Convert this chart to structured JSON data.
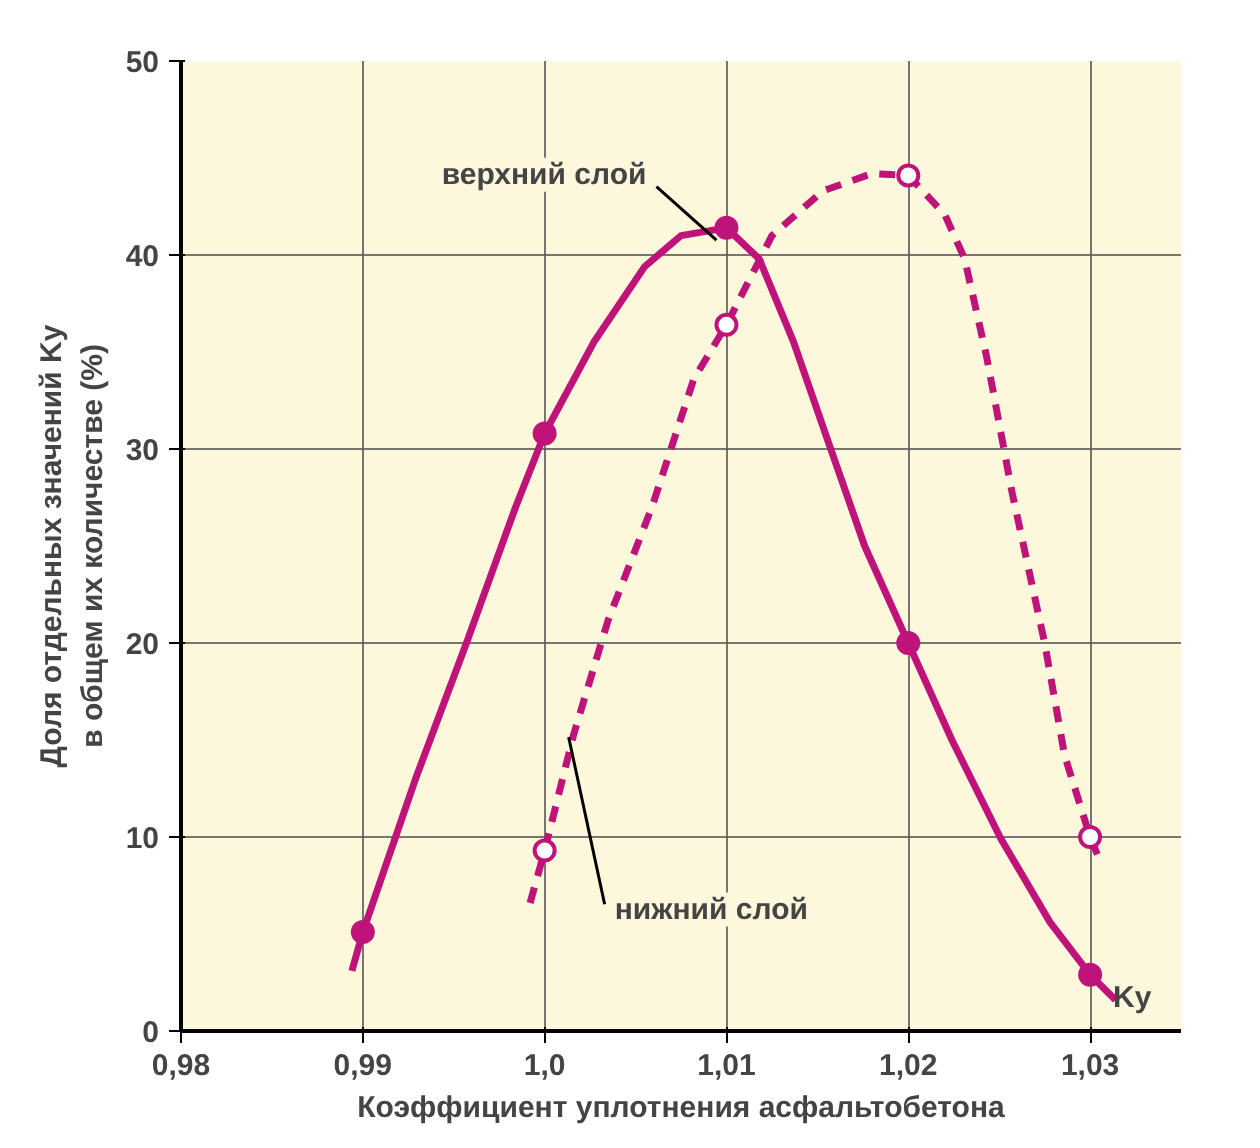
{
  "chart_data": {
    "type": "line",
    "xlabel": "Коэффициент уплотнения асфальтобетона",
    "ylabel": "Доля отдельных значений Kу\nв общем их количестве (%)",
    "series": [
      {
        "color": "#c0137a",
        "line_style": "solid",
        "marker": "none",
        "x": [
          0.9894,
          0.99,
          0.9929,
          0.9957,
          0.9984,
          1.0,
          1.0027,
          1.0055,
          1.0075,
          1.01,
          1.0118,
          1.0137,
          1.0157,
          1.0176,
          1.02,
          1.0224,
          1.0251,
          1.0278,
          1.03,
          1.0314
        ],
        "values": [
          3.1,
          5.1,
          13.0,
          20.0,
          27.0,
          30.8,
          35.5,
          39.4,
          41.0,
          41.4,
          39.8,
          35.5,
          30.1,
          25.0,
          20.0,
          15.0,
          9.9,
          5.6,
          2.9,
          1.6
        ]
      },
      {
        "color": "#c0137a",
        "line_style": "dashed",
        "marker": "none",
        "x": [
          0.9992,
          1.0,
          1.0016,
          1.0035,
          1.0059,
          1.0082,
          1.01,
          1.0125,
          1.0153,
          1.018,
          1.02,
          1.022,
          1.0231,
          1.0243,
          1.0257,
          1.0275,
          1.0286,
          1.03,
          1.0304
        ],
        "values": [
          6.6,
          9.3,
          15.3,
          21.2,
          27.0,
          33.6,
          36.4,
          41.0,
          43.3,
          44.2,
          44.1,
          42.1,
          39.8,
          34.8,
          27.8,
          20.0,
          14.2,
          10.0,
          9.1
        ]
      },
      {
        "type": "scatter",
        "name": "верхний слой",
        "color": "#c0137a",
        "marker": "circle",
        "x": [
          0.99,
          1.0,
          1.01,
          1.02,
          1.03
        ],
        "values": [
          5.1,
          30.8,
          41.4,
          20,
          2.9
        ]
      },
      {
        "type": "scatter",
        "name": "нижний слой",
        "color": "#c0137a",
        "marker": "circle",
        "x": [
          1.0,
          1.01,
          1.02,
          1.03
        ],
        "values": [
          9.3,
          36.4,
          44.1,
          10
        ]
      }
    ],
    "annotations": [
      "Kу"
    ],
    "grid": true,
    "xlim": [
      0.98,
      1.035
    ],
    "ylim": [
      0,
      50
    ],
    "xticks": [
      {
        "value": 0.98,
        "label": "0,98"
      },
      {
        "value": 0.99,
        "label": "0,99"
      },
      {
        "value": 1.0,
        "label": "1,0"
      },
      {
        "value": 1.01,
        "label": "1,01"
      },
      {
        "value": 1.02,
        "label": "1,02"
      },
      {
        "value": 1.03,
        "label": "1,03"
      }
    ],
    "yticks": [
      0,
      10,
      20,
      30,
      40,
      50
    ]
  }
}
